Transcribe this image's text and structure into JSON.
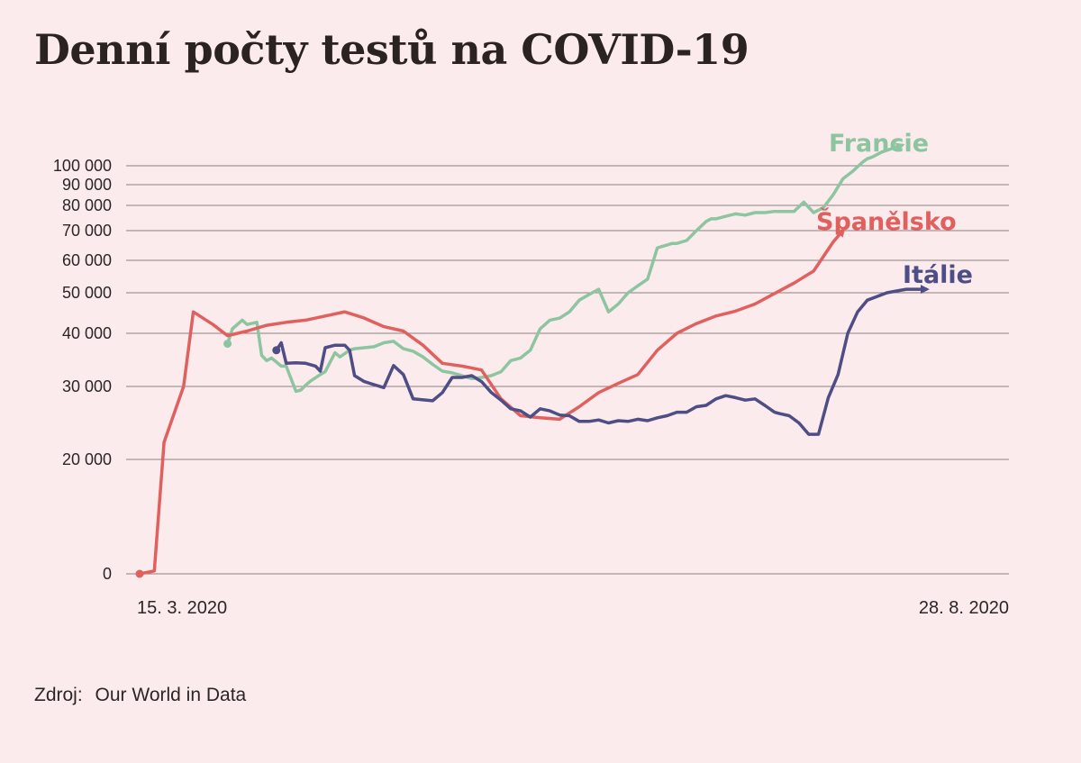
{
  "title": "Denní počty testů na COVID-19",
  "source": {
    "label": "Zdroj:",
    "value": "Our World in Data"
  },
  "colors": {
    "background": "#fcebed",
    "grid": "#8a8080",
    "text": "#2b2626"
  },
  "chart_data": {
    "type": "line",
    "title": "Denní počty testů na COVID-19",
    "xlabel": "",
    "ylabel": "",
    "grid": true,
    "yscale": "log",
    "y_ticks": [
      {
        "value": 0,
        "label": "0"
      },
      {
        "value": 20000,
        "label": "20 000"
      },
      {
        "value": 30000,
        "label": "30 000"
      },
      {
        "value": 40000,
        "label": "40 000"
      },
      {
        "value": 50000,
        "label": "50 000"
      },
      {
        "value": 60000,
        "label": "60 000"
      },
      {
        "value": 70000,
        "label": "70 000"
      },
      {
        "value": 80000,
        "label": "80 000"
      },
      {
        "value": 90000,
        "label": "90 000"
      },
      {
        "value": 100000,
        "label": "100 000"
      }
    ],
    "x_range": [
      "2020-03-15",
      "2020-08-28"
    ],
    "x_ticks": [
      {
        "date": "2020-03-15",
        "label": "15. 3. 2020"
      },
      {
        "date": "2020-08-28",
        "label": "28. 8. 2020"
      }
    ],
    "series": [
      {
        "name": "Francie",
        "color": "#8cc5a0",
        "x": [
          "2020-04-02",
          "2020-04-03",
          "2020-04-05",
          "2020-04-06",
          "2020-04-08",
          "2020-04-09",
          "2020-04-10",
          "2020-04-11",
          "2020-04-13",
          "2020-04-14",
          "2020-04-16",
          "2020-04-17",
          "2020-04-18",
          "2020-04-19",
          "2020-04-21",
          "2020-04-22",
          "2020-04-24",
          "2020-04-25",
          "2020-04-27",
          "2020-04-28",
          "2020-04-30",
          "2020-05-02",
          "2020-05-04",
          "2020-05-06",
          "2020-05-08",
          "2020-05-10",
          "2020-05-12",
          "2020-05-14",
          "2020-05-16",
          "2020-05-18",
          "2020-05-20",
          "2020-05-22",
          "2020-05-24",
          "2020-05-26",
          "2020-05-28",
          "2020-05-30",
          "2020-06-01",
          "2020-06-03",
          "2020-06-05",
          "2020-06-07",
          "2020-06-09",
          "2020-06-11",
          "2020-06-13",
          "2020-06-15",
          "2020-06-17",
          "2020-06-19",
          "2020-06-21",
          "2020-06-23",
          "2020-06-25",
          "2020-06-27",
          "2020-06-29",
          "2020-07-01",
          "2020-07-02",
          "2020-07-03",
          "2020-07-05",
          "2020-07-07",
          "2020-07-09",
          "2020-07-10",
          "2020-07-11",
          "2020-07-13",
          "2020-07-15",
          "2020-07-17",
          "2020-07-19",
          "2020-07-21",
          "2020-07-23",
          "2020-07-25",
          "2020-07-27",
          "2020-07-29",
          "2020-07-31",
          "2020-08-02",
          "2020-08-04",
          "2020-08-06",
          "2020-08-08",
          "2020-08-10",
          "2020-08-11",
          "2020-08-12",
          "2020-08-14",
          "2020-08-16",
          "2020-08-18"
        ],
        "values": [
          37800,
          41000,
          43000,
          42000,
          42500,
          35500,
          34500,
          35000,
          33500,
          33500,
          29200,
          29400,
          30200,
          30900,
          32000,
          32500,
          36000,
          35200,
          36500,
          36800,
          37000,
          37200,
          38000,
          38300,
          36800,
          36300,
          35200,
          33800,
          32600,
          32300,
          31800,
          31300,
          31500,
          31800,
          32500,
          34500,
          35000,
          36500,
          41000,
          43000,
          43500,
          45000,
          48000,
          49500,
          51000,
          45000,
          47000,
          50000,
          52000,
          54000,
          64000,
          65000,
          65500,
          65500,
          66500,
          70000,
          73500,
          74500,
          74500,
          75500,
          76500,
          76000,
          77000,
          77000,
          77500,
          77500,
          77500,
          81500,
          77000,
          79000,
          85000,
          93000,
          97000,
          102000,
          104000,
          105000,
          108000,
          110000,
          112000
        ]
      },
      {
        "name": "Španělsko",
        "color": "#e0605e",
        "x": [
          "2020-03-15",
          "2020-03-18",
          "2020-03-20",
          "2020-03-24",
          "2020-03-26",
          "2020-03-30",
          "2020-04-02",
          "2020-04-06",
          "2020-04-10",
          "2020-04-14",
          "2020-04-18",
          "2020-04-22",
          "2020-04-26",
          "2020-04-30",
          "2020-05-04",
          "2020-05-08",
          "2020-05-12",
          "2020-05-16",
          "2020-05-20",
          "2020-05-24",
          "2020-05-28",
          "2020-06-01",
          "2020-06-05",
          "2020-06-09",
          "2020-06-13",
          "2020-06-17",
          "2020-06-21",
          "2020-06-25",
          "2020-06-29",
          "2020-07-03",
          "2020-07-07",
          "2020-07-11",
          "2020-07-15",
          "2020-07-19",
          "2020-07-23",
          "2020-07-27",
          "2020-07-31",
          "2020-08-04",
          "2020-08-06"
        ],
        "values": [
          0,
          500,
          22000,
          30000,
          45000,
          42000,
          39500,
          40500,
          41800,
          42500,
          43000,
          44000,
          45000,
          43500,
          41500,
          40500,
          37500,
          34000,
          33500,
          32800,
          28000,
          25500,
          25200,
          25000,
          26800,
          29000,
          30500,
          32000,
          36500,
          40000,
          42200,
          44000,
          45200,
          47000,
          49800,
          52800,
          56500,
          66000,
          70000
        ]
      },
      {
        "name": "Itálie",
        "color": "#4e4d85",
        "x": [
          "2020-04-12",
          "2020-04-13",
          "2020-04-14",
          "2020-04-16",
          "2020-04-18",
          "2020-04-20",
          "2020-04-21",
          "2020-04-22",
          "2020-04-24",
          "2020-04-26",
          "2020-04-27",
          "2020-04-28",
          "2020-04-30",
          "2020-05-02",
          "2020-05-04",
          "2020-05-06",
          "2020-05-08",
          "2020-05-10",
          "2020-05-14",
          "2020-05-16",
          "2020-05-18",
          "2020-05-20",
          "2020-05-22",
          "2020-05-24",
          "2020-05-26",
          "2020-05-28",
          "2020-05-30",
          "2020-06-01",
          "2020-06-03",
          "2020-06-05",
          "2020-06-07",
          "2020-06-09",
          "2020-06-11",
          "2020-06-13",
          "2020-06-15",
          "2020-06-17",
          "2020-06-19",
          "2020-06-21",
          "2020-06-23",
          "2020-06-25",
          "2020-06-27",
          "2020-06-29",
          "2020-07-01",
          "2020-07-03",
          "2020-07-05",
          "2020-07-07",
          "2020-07-09",
          "2020-07-11",
          "2020-07-13",
          "2020-07-15",
          "2020-07-17",
          "2020-07-19",
          "2020-07-21",
          "2020-07-23",
          "2020-07-24",
          "2020-07-26",
          "2020-07-28",
          "2020-07-30",
          "2020-08-01",
          "2020-08-03",
          "2020-08-05",
          "2020-08-07",
          "2020-08-09",
          "2020-08-11",
          "2020-08-13",
          "2020-08-15",
          "2020-08-17",
          "2020-08-19",
          "2020-08-21",
          "2020-08-23"
        ],
        "values": [
          36500,
          38000,
          34000,
          34100,
          34000,
          33500,
          32600,
          37000,
          37500,
          37500,
          36500,
          31800,
          30800,
          30300,
          29800,
          33600,
          32000,
          28000,
          27700,
          29000,
          31500,
          31500,
          31800,
          30800,
          29000,
          27800,
          26500,
          26200,
          25300,
          26500,
          26200,
          25600,
          25500,
          24700,
          24700,
          24900,
          24500,
          24800,
          24700,
          25000,
          24800,
          25200,
          25500,
          26000,
          26000,
          26800,
          27000,
          28000,
          28500,
          28200,
          27800,
          28000,
          27000,
          26000,
          25800,
          25500,
          24500,
          23000,
          23000,
          28200,
          32000,
          40000,
          45000,
          48000,
          49000,
          50000,
          50500,
          51000,
          51000,
          51000
        ]
      }
    ]
  }
}
